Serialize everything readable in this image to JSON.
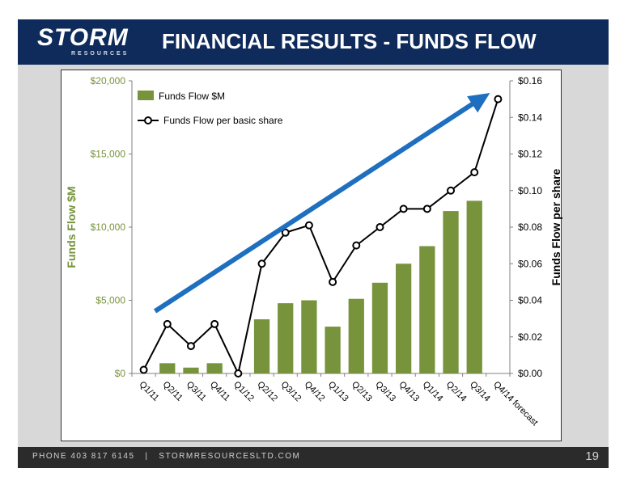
{
  "header": {
    "logo_text": "STORM",
    "logo_sub": "RESOURCES",
    "title": "FINANCIAL RESULTS - FUNDS FLOW"
  },
  "footer": {
    "text": "PHONE 403 817 6145   |   STORMRESOURCESLTD.COM",
    "page_number": "19"
  },
  "colors": {
    "header_bg": "#0f2b5b",
    "bar": "#77933c",
    "left_axis": "#77933c",
    "line": "#000000",
    "arrow": "#1f6fc0"
  },
  "chart_data": {
    "type": "bar+line",
    "categories": [
      "Q1/11",
      "Q2/11",
      "Q3/11",
      "Q4/11",
      "Q1/12",
      "Q2/12",
      "Q3/12",
      "Q4/12",
      "Q1/13",
      "Q2/13",
      "Q3/13",
      "Q4/13",
      "Q1/14",
      "Q2/14",
      "Q3/14",
      "Q4/14 forecast"
    ],
    "series": [
      {
        "name": "Funds Flow $M",
        "type": "bar",
        "axis": "left",
        "values": [
          0,
          700,
          400,
          700,
          0,
          3700,
          4800,
          5000,
          3200,
          5100,
          6200,
          7500,
          8700,
          11100,
          11800,
          null
        ]
      },
      {
        "name": "Funds Flow per basic share",
        "type": "line",
        "axis": "right",
        "values": [
          0.002,
          0.027,
          0.015,
          0.027,
          0.0,
          0.06,
          0.077,
          0.081,
          0.05,
          0.07,
          0.08,
          0.09,
          0.09,
          0.1,
          0.11,
          0.15
        ]
      }
    ],
    "left_axis": {
      "label": "Funds Flow $M",
      "ylim": [
        0,
        20000
      ],
      "ticks": [
        "$0",
        "$5,000",
        "$10,000",
        "$15,000",
        "$20,000"
      ]
    },
    "right_axis": {
      "label": "Funds Flow per share",
      "ylim": [
        0,
        0.16
      ],
      "ticks": [
        "$0.00",
        "$0.02",
        "$0.04",
        "$0.06",
        "$0.08",
        "$0.10",
        "$0.12",
        "$0.14",
        "$0.16"
      ]
    },
    "legend": {
      "position": "top-left",
      "entries": [
        "Funds Flow $M",
        "Funds Flow per basic share"
      ]
    },
    "annotation": {
      "type": "trend-arrow",
      "from_category": "Q1/11",
      "to_category": "Q4/14 forecast"
    },
    "grid": false
  }
}
